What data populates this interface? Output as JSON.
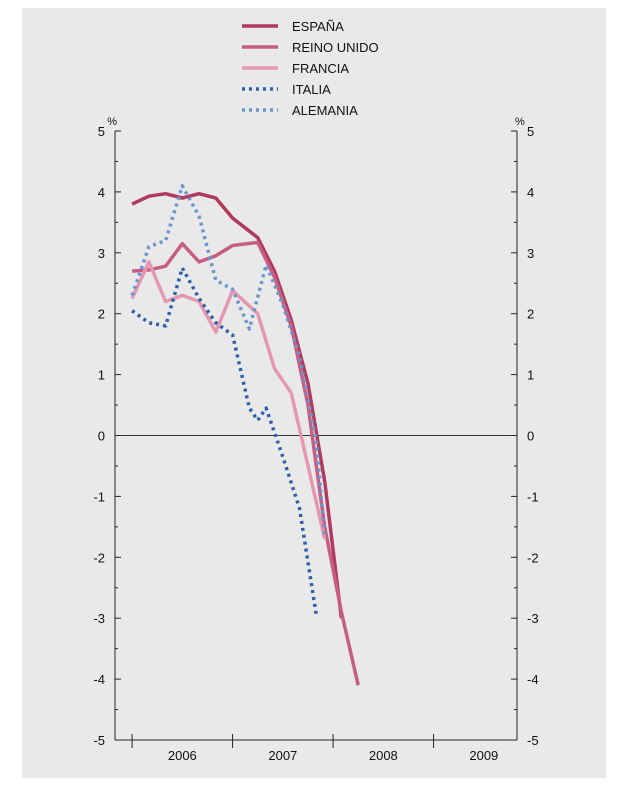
{
  "chart_data": {
    "type": "line",
    "title": "",
    "xlabel": "",
    "ylabel": "",
    "y_unit_left": "%",
    "y_unit_right": "%",
    "ylim": [
      -5,
      5
    ],
    "y_ticks": [
      "5",
      "4",
      "3",
      "2",
      "1",
      "0",
      "-1",
      "-2",
      "-3",
      "-4",
      "-5"
    ],
    "x_categories": [
      "2006",
      "2007",
      "2008",
      "2009"
    ],
    "x_range": [
      2005.83,
      2009.83
    ],
    "legend_position": "top-center",
    "zero_line": true,
    "series": [
      {
        "name": "ESPAÑA",
        "color": "#b03a5e",
        "style": "solid",
        "points": [
          [
            2006.0,
            3.8
          ],
          [
            2006.167,
            3.93
          ],
          [
            2006.333,
            3.97
          ],
          [
            2006.5,
            3.9
          ],
          [
            2006.667,
            3.97
          ],
          [
            2006.833,
            3.9
          ],
          [
            2007.0,
            3.57
          ],
          [
            2007.25,
            3.25
          ],
          [
            2007.417,
            2.7
          ],
          [
            2007.583,
            1.9
          ],
          [
            2007.75,
            0.85
          ],
          [
            2007.917,
            -0.75
          ],
          [
            2008.083,
            -3.0
          ]
        ]
      },
      {
        "name": "REINO UNIDO",
        "color": "#c65e83",
        "style": "solid",
        "points": [
          [
            2006.0,
            2.7
          ],
          [
            2006.167,
            2.72
          ],
          [
            2006.333,
            2.78
          ],
          [
            2006.5,
            3.15
          ],
          [
            2006.667,
            2.85
          ],
          [
            2006.833,
            2.95
          ],
          [
            2007.0,
            3.12
          ],
          [
            2007.25,
            3.17
          ],
          [
            2007.417,
            2.6
          ],
          [
            2007.583,
            1.8
          ],
          [
            2007.75,
            0.5
          ],
          [
            2007.917,
            -1.5
          ],
          [
            2008.083,
            -2.9
          ],
          [
            2008.25,
            -4.1
          ]
        ]
      },
      {
        "name": "FRANCIA",
        "color": "#e597b0",
        "style": "solid",
        "points": [
          [
            2006.0,
            2.25
          ],
          [
            2006.167,
            2.85
          ],
          [
            2006.333,
            2.2
          ],
          [
            2006.5,
            2.3
          ],
          [
            2006.667,
            2.2
          ],
          [
            2006.833,
            1.7
          ],
          [
            2007.0,
            2.38
          ],
          [
            2007.25,
            2.0
          ],
          [
            2007.417,
            1.1
          ],
          [
            2007.583,
            0.7
          ],
          [
            2007.75,
            -0.5
          ],
          [
            2007.917,
            -1.7
          ]
        ]
      },
      {
        "name": "ITALIA",
        "color": "#2c5fa8",
        "style": "dotted",
        "points": [
          [
            2006.0,
            2.05
          ],
          [
            2006.167,
            1.85
          ],
          [
            2006.333,
            1.8
          ],
          [
            2006.5,
            2.75
          ],
          [
            2006.667,
            2.25
          ],
          [
            2006.833,
            1.85
          ],
          [
            2007.0,
            1.65
          ],
          [
            2007.167,
            0.45
          ],
          [
            2007.25,
            0.25
          ],
          [
            2007.333,
            0.45
          ],
          [
            2007.5,
            -0.35
          ],
          [
            2007.667,
            -1.2
          ],
          [
            2007.833,
            -2.95
          ]
        ]
      },
      {
        "name": "ALEMANIA",
        "color": "#6b95cc",
        "style": "dotted",
        "points": [
          [
            2006.0,
            2.3
          ],
          [
            2006.167,
            3.1
          ],
          [
            2006.333,
            3.2
          ],
          [
            2006.5,
            4.1
          ],
          [
            2006.667,
            3.6
          ],
          [
            2006.833,
            2.55
          ],
          [
            2007.0,
            2.4
          ],
          [
            2007.167,
            1.75
          ],
          [
            2007.333,
            2.8
          ],
          [
            2007.5,
            2.15
          ],
          [
            2007.667,
            1.3
          ],
          [
            2007.833,
            -0.1
          ],
          [
            2007.917,
            -1.65
          ]
        ]
      }
    ]
  }
}
